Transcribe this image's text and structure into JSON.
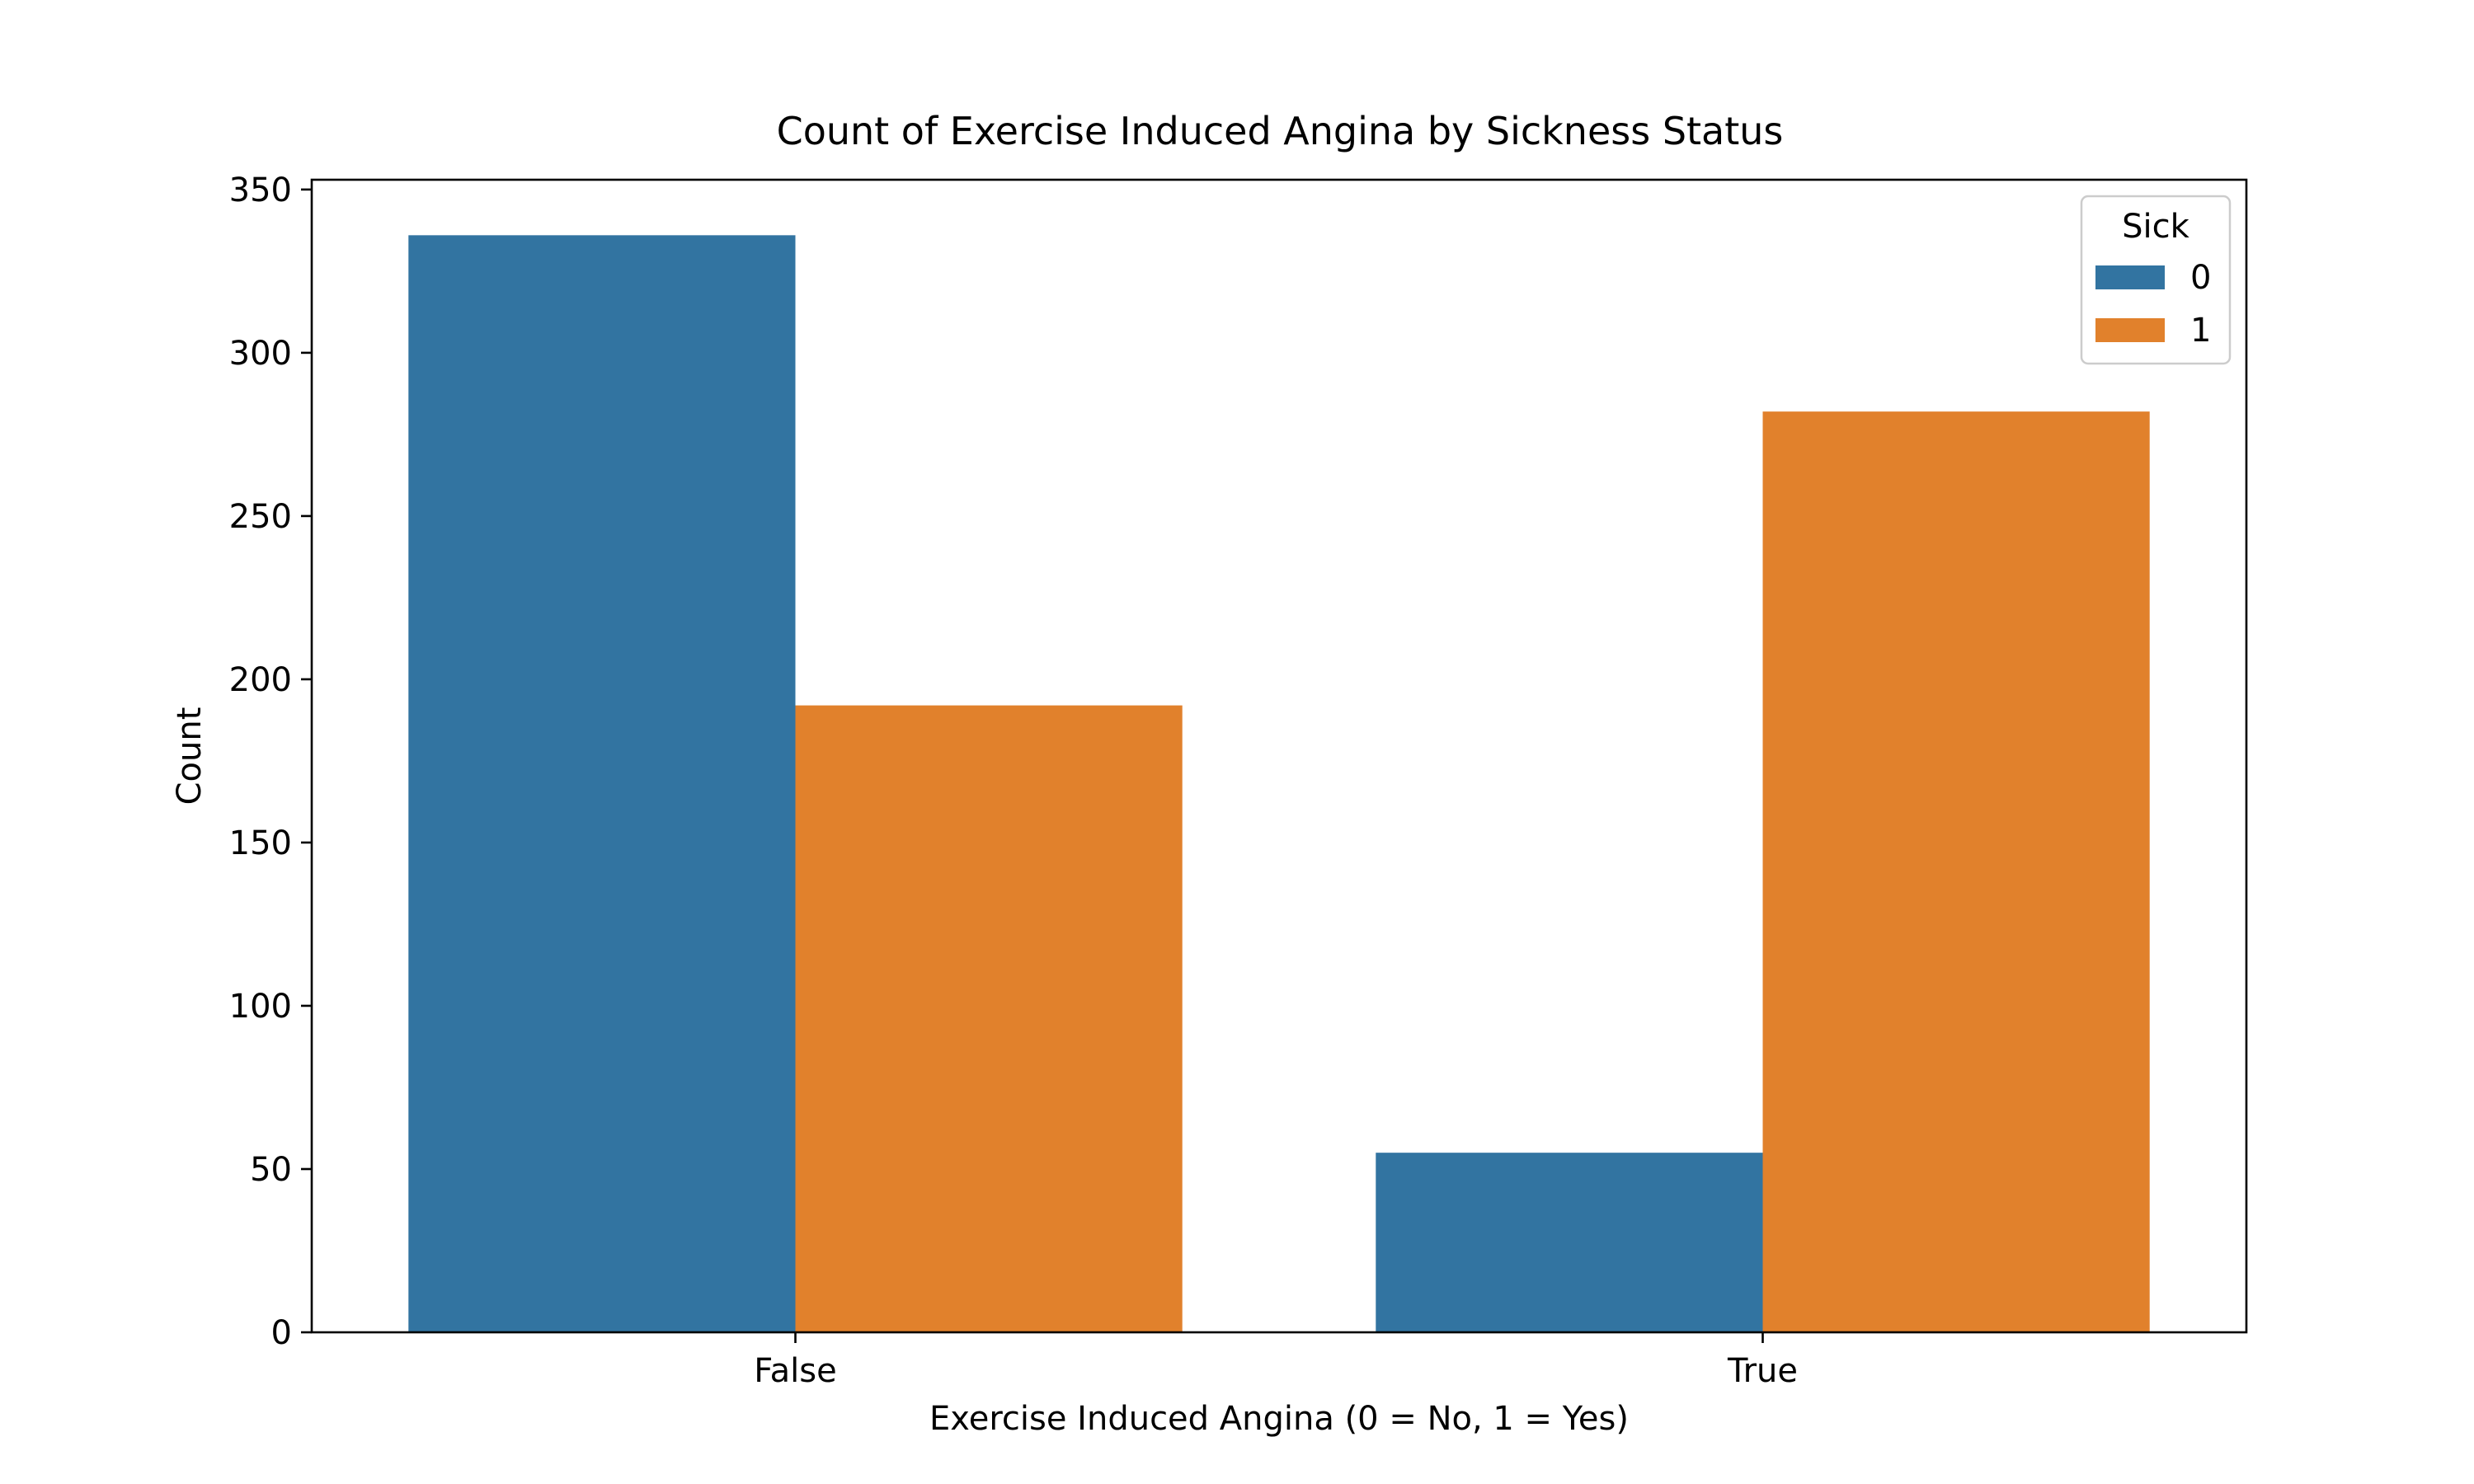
{
  "chart_data": {
    "type": "bar",
    "title": "Count of Exercise Induced Angina by Sickness Status",
    "xlabel": "Exercise Induced Angina (0 = No, 1 = Yes)",
    "ylabel": "Count",
    "categories": [
      "False",
      "True"
    ],
    "series": [
      {
        "name": "0",
        "values": [
          336,
          55
        ],
        "color": "#3274a1"
      },
      {
        "name": "1",
        "values": [
          192,
          282
        ],
        "color": "#e1812c"
      }
    ],
    "ylim": [
      0,
      353
    ],
    "yticks": [
      0,
      50,
      100,
      150,
      200,
      250,
      300,
      350
    ],
    "grid": false,
    "legend": {
      "title": "Sick",
      "position": "top-right"
    }
  }
}
